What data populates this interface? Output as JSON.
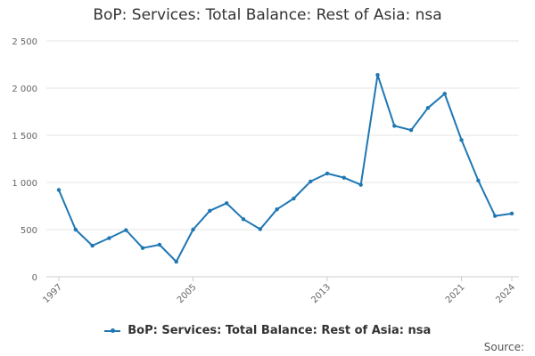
{
  "chart_data": {
    "type": "line",
    "title": "BoP: Services: Total Balance: Rest of Asia: nsa",
    "xlabel": "",
    "ylabel": "",
    "ylim": [
      0,
      2500
    ],
    "xlim": [
      1997,
      2024
    ],
    "y_ticks": [
      "0",
      "500",
      "1 000",
      "1 500",
      "2 000",
      "2 500"
    ],
    "x_ticks": [
      "1997",
      "2005",
      "2013",
      "2021",
      "2024"
    ],
    "grid": true,
    "legend_position": "bottom",
    "series": [
      {
        "name": "BoP: Services: Total Balance: Rest of Asia: nsa",
        "color": "#1f77b4",
        "x": [
          1997,
          1998,
          1999,
          2000,
          2001,
          2002,
          2003,
          2004,
          2005,
          2006,
          2007,
          2008,
          2009,
          2010,
          2011,
          2012,
          2013,
          2014,
          2015,
          2016,
          2017,
          2018,
          2019,
          2020,
          2021,
          2022,
          2023,
          2024
        ],
        "values": [
          920,
          500,
          330,
          410,
          495,
          305,
          340,
          160,
          500,
          700,
          780,
          610,
          505,
          715,
          830,
          1010,
          1095,
          1050,
          975,
          2140,
          1600,
          1555,
          1790,
          1940,
          1450,
          1020,
          645,
          670
        ]
      }
    ]
  },
  "source_label": "Source:"
}
